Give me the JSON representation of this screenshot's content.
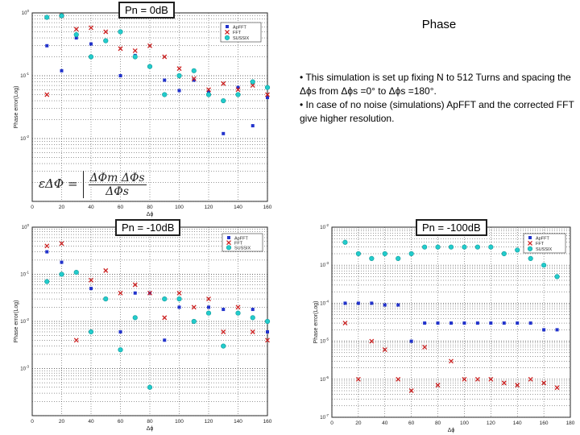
{
  "heading": "Phase",
  "notes": [
    "• This simulation is set up fixing N to 512 Turns and spacing the Δϕs from Δϕs =0° to Δϕs =180°.",
    "• In case of no noise (simulations) ApFFT and the corrected FFT give higher resolution."
  ],
  "formula": {
    "lhs": "εΔΦ =",
    "numerator": "ΔΦm  ΔΦs",
    "denominator": "ΔΦs"
  },
  "colors": {
    "ApFFT": "#2233cc",
    "FFT": "#cc2222",
    "SUSSIX": "#22cccc",
    "grid": "#333333"
  },
  "chart_data": [
    {
      "type": "scatter",
      "title": "Pn = 0dB",
      "xlabel": "Δϕ",
      "ylabel": "Phase error(Log)",
      "xlim": [
        0,
        160
      ],
      "log_y": true,
      "ylim_exp": [
        -3,
        0
      ],
      "x_ticks": [
        "0",
        "20",
        "40",
        "60",
        "80",
        "100",
        "120",
        "140",
        "160"
      ],
      "y_ticks": [
        "10^0",
        "10^-1",
        "10^-2"
      ],
      "legend_position": "top-right",
      "series": [
        {
          "name": "ApFFT",
          "x": [
            10,
            20,
            30,
            40,
            50,
            60,
            70,
            80,
            90,
            100,
            110,
            120,
            130,
            140,
            150,
            160
          ],
          "y": [
            0.3,
            0.12,
            0.4,
            0.32,
            0.36,
            0.1,
            0.21,
            0.14,
            0.085,
            0.058,
            0.085,
            0.055,
            0.012,
            0.065,
            0.016,
            0.045
          ]
        },
        {
          "name": "FFT",
          "x": [
            10,
            20,
            30,
            40,
            50,
            60,
            70,
            80,
            90,
            100,
            110,
            120,
            130,
            140,
            150,
            160
          ],
          "y": [
            0.05,
            0.9,
            0.55,
            0.58,
            0.5,
            0.27,
            0.25,
            0.3,
            0.2,
            0.13,
            0.09,
            0.06,
            0.075,
            0.06,
            0.07,
            0.05
          ]
        },
        {
          "name": "SUSSIX",
          "x": [
            10,
            20,
            30,
            40,
            50,
            60,
            70,
            80,
            90,
            100,
            110,
            120,
            130,
            140,
            150,
            160
          ],
          "y": [
            0.85,
            0.9,
            0.45,
            0.2,
            0.36,
            0.5,
            0.2,
            0.14,
            0.05,
            0.1,
            0.12,
            0.05,
            0.04,
            0.05,
            0.08,
            0.065
          ]
        }
      ]
    },
    {
      "type": "scatter",
      "title": "Pn = -10dB",
      "xlabel": "Δϕ",
      "ylabel": "Phase error(Log)",
      "xlim": [
        0,
        160
      ],
      "log_y": true,
      "ylim_exp": [
        -4,
        0
      ],
      "x_ticks": [
        "0",
        "20",
        "40",
        "60",
        "80",
        "100",
        "120",
        "140",
        "160"
      ],
      "y_ticks": [
        "10^0",
        "10^-1",
        "10^-2",
        "10^-3"
      ],
      "legend_position": "top-right",
      "series": [
        {
          "name": "ApFFT",
          "x": [
            10,
            20,
            30,
            40,
            50,
            60,
            70,
            80,
            90,
            100,
            110,
            120,
            130,
            140,
            150,
            160
          ],
          "y": [
            0.3,
            0.18,
            0.11,
            0.05,
            0.03,
            0.006,
            0.04,
            0.04,
            0.004,
            0.02,
            0.01,
            0.02,
            0.018,
            0.015,
            0.018,
            0.006
          ]
        },
        {
          "name": "FFT",
          "x": [
            10,
            20,
            30,
            40,
            50,
            60,
            70,
            80,
            90,
            100,
            110,
            120,
            130,
            140,
            150,
            160
          ],
          "y": [
            0.4,
            0.45,
            0.004,
            0.075,
            0.12,
            0.04,
            0.06,
            0.04,
            0.012,
            0.04,
            0.02,
            0.03,
            0.006,
            0.02,
            0.006,
            0.004
          ]
        },
        {
          "name": "SUSSIX",
          "x": [
            10,
            20,
            30,
            40,
            50,
            60,
            70,
            80,
            90,
            100,
            110,
            120,
            130,
            140,
            150,
            160
          ],
          "y": [
            0.07,
            0.1,
            0.11,
            0.006,
            0.03,
            0.0025,
            0.012,
            0.0004,
            0.03,
            0.03,
            0.01,
            0.015,
            0.003,
            0.015,
            0.012,
            0.01
          ]
        }
      ]
    },
    {
      "type": "scatter",
      "title": "Pn = -100dB",
      "xlabel": "Δϕ",
      "ylabel": "Phase error(Log)",
      "xlim": [
        0,
        180
      ],
      "log_y": true,
      "ylim_exp": [
        -7,
        -2
      ],
      "x_ticks": [
        "0",
        "20",
        "40",
        "60",
        "80",
        "100",
        "120",
        "140",
        "160",
        "180"
      ],
      "y_ticks": [
        "10^-2",
        "10^-3",
        "10^-4",
        "10^-5",
        "10^-6",
        "10^-7"
      ],
      "legend_position": "top-right",
      "series": [
        {
          "name": "ApFFT",
          "x": [
            10,
            20,
            30,
            40,
            50,
            60,
            70,
            80,
            90,
            100,
            110,
            120,
            130,
            140,
            150,
            160,
            170
          ],
          "y": [
            0.0001,
            0.0001,
            0.0001,
            9e-05,
            9e-05,
            1e-05,
            3e-05,
            3e-05,
            3e-05,
            3e-05,
            3e-05,
            3e-05,
            3e-05,
            3e-05,
            3e-05,
            2e-05,
            2e-05
          ]
        },
        {
          "name": "FFT",
          "x": [
            10,
            20,
            30,
            40,
            50,
            60,
            70,
            80,
            90,
            100,
            110,
            120,
            130,
            140,
            150,
            160,
            170
          ],
          "y": [
            3e-05,
            1e-06,
            1e-05,
            6e-06,
            1e-06,
            5e-07,
            7e-06,
            7e-07,
            3e-06,
            1e-06,
            1e-06,
            1e-06,
            8e-07,
            7e-07,
            1e-06,
            8e-07,
            6e-07
          ]
        },
        {
          "name": "SUSSIX",
          "x": [
            10,
            20,
            30,
            40,
            50,
            60,
            70,
            80,
            90,
            100,
            110,
            120,
            130,
            140,
            150,
            160,
            170
          ],
          "y": [
            0.004,
            0.002,
            0.0015,
            0.002,
            0.0015,
            0.002,
            0.003,
            0.003,
            0.003,
            0.003,
            0.003,
            0.003,
            0.002,
            0.0025,
            0.0015,
            0.001,
            0.0005
          ]
        }
      ]
    }
  ]
}
